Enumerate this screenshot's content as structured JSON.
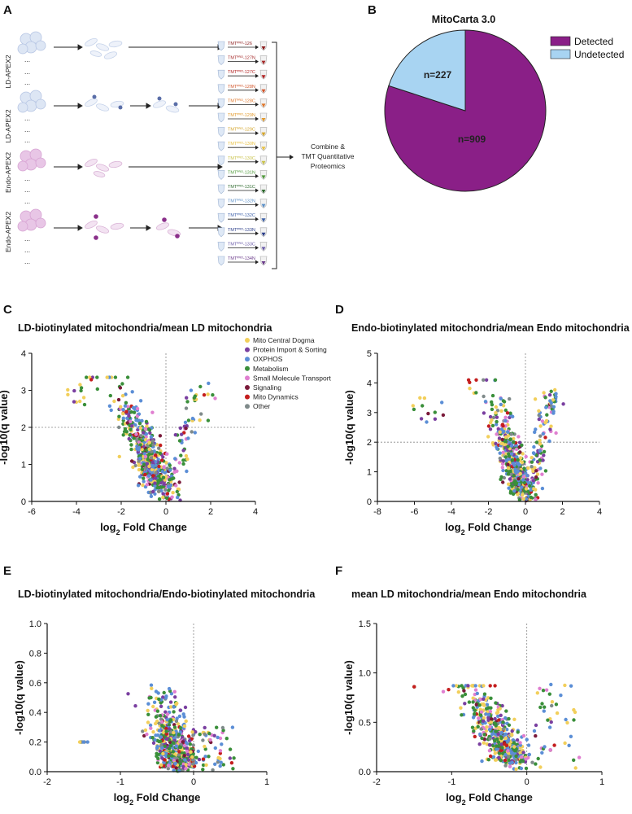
{
  "panels": {
    "a": "A",
    "b": "B",
    "c": "C",
    "d": "D",
    "e": "E",
    "f": "F"
  },
  "schematic": {
    "rows": [
      {
        "label": "LD-APEX2"
      },
      {
        "label": "LD-APEX2"
      },
      {
        "label": "Endo-APEX2"
      },
      {
        "label": "Endo-APEX2"
      }
    ],
    "ellipsis": "...",
    "tmt_labels": [
      {
        "text": "TMTᴾᴿᴼ-126",
        "color": "#8b1a1a"
      },
      {
        "text": "TMTᴾᴿᴼ-127N",
        "color": "#a52a2a"
      },
      {
        "text": "TMTᴾᴿᴼ-127C",
        "color": "#b22222"
      },
      {
        "text": "TMTᴾᴿᴼ-128N",
        "color": "#d2552a"
      },
      {
        "text": "TMTᴾᴿᴼ-128C",
        "color": "#e0762a"
      },
      {
        "text": "TMTᴾᴿᴼ-129N",
        "color": "#e39a2c"
      },
      {
        "text": "TMTᴾᴿᴼ-129C",
        "color": "#d4a52a"
      },
      {
        "text": "TMTᴾᴿᴼ-130N",
        "color": "#e8c040"
      },
      {
        "text": "TMTᴾᴿᴼ-130C",
        "color": "#c9c24a"
      },
      {
        "text": "TMTᴾᴿᴼ-131N",
        "color": "#4f9a3a"
      },
      {
        "text": "TMTᴾᴿᴼ-131C",
        "color": "#2f6b2f"
      },
      {
        "text": "TMTᴾᴿᴼ-132N",
        "color": "#5a8fc8"
      },
      {
        "text": "TMTᴾᴿᴼ-132C",
        "color": "#3a5fa8"
      },
      {
        "text": "TMTᴾᴿᴼ-133N",
        "color": "#2c3f8a"
      },
      {
        "text": "TMTᴾᴿᴼ-133C",
        "color": "#6a5aa8"
      },
      {
        "text": "TMTᴾᴿᴼ-134N",
        "color": "#6a3a8a"
      }
    ],
    "combine_text": [
      "Combine &",
      "TMT Quantitative",
      "Proteomics"
    ]
  },
  "pie": {
    "title": "MitoCarta 3.0",
    "slices": [
      {
        "label": "Detected",
        "value": 909,
        "count_text": "n=909",
        "color": "#8a1f87"
      },
      {
        "label": "Undetected",
        "value": 227,
        "count_text": "n=227",
        "color": "#a8d4f2"
      }
    ]
  },
  "legend": {
    "items": [
      {
        "label": "Mito Central Dogma",
        "color": "#f2cf5b"
      },
      {
        "label": "Protein Import & Sorting",
        "color": "#7a3fa0"
      },
      {
        "label": "OXPHOS",
        "color": "#5b8ed6"
      },
      {
        "label": "Metabolism",
        "color": "#3a8f3a"
      },
      {
        "label": "Small Molecule Transport",
        "color": "#e07fd0"
      },
      {
        "label": "Signaling",
        "color": "#7a1a3a"
      },
      {
        "label": "Mito Dynamics",
        "color": "#c41e1e"
      },
      {
        "label": "Other",
        "color": "#7f8a8a"
      }
    ]
  },
  "chart_data": [
    {
      "id": "C",
      "type": "scatter",
      "title": "LD-biotinylated mitochondria/mean LD mitochondria",
      "xlabel": "log2 Fold Change",
      "xlabel_main": "log",
      "xlabel_sub": "2",
      "xlabel_rest": " Fold Change",
      "ylabel": "-log10(q value)",
      "xlim": [
        -6,
        4
      ],
      "ylim": [
        0,
        4
      ],
      "xticks": [
        "-6",
        "-4",
        "-2",
        "0",
        "2",
        "4"
      ],
      "yticks": [
        "0",
        "1",
        "2",
        "3",
        "4"
      ],
      "threshold_y": 2,
      "threshold_x": 0,
      "shape": "volcano_ld",
      "n_points": 620
    },
    {
      "id": "D",
      "type": "scatter",
      "title": "Endo-biotinylated mitochondria/mean Endo mitochondria",
      "xlabel": "log2 Fold Change",
      "xlabel_main": "log",
      "xlabel_sub": "2",
      "xlabel_rest": " Fold Change",
      "ylabel": "-log10(q value)",
      "xlim": [
        -8,
        4
      ],
      "ylim": [
        0,
        5
      ],
      "xticks": [
        "-8",
        "-6",
        "-4",
        "-2",
        "0",
        "2",
        "4"
      ],
      "yticks": [
        "0",
        "1",
        "2",
        "3",
        "4",
        "5"
      ],
      "threshold_y": 2,
      "threshold_x": 0,
      "shape": "volcano_endo",
      "n_points": 620
    },
    {
      "id": "E",
      "type": "scatter",
      "title": "LD-biotinylated mitochondria/Endo-biotinylated mitochondria",
      "xlabel": "log2 Fold Change",
      "xlabel_main": "log",
      "xlabel_sub": "2",
      "xlabel_rest": " Fold Change",
      "ylabel": "-log10(q value)",
      "xlim": [
        -2,
        1
      ],
      "ylim": [
        0,
        1.0
      ],
      "xticks": [
        "-2",
        "-1",
        "0",
        "1"
      ],
      "yticks": [
        "0.0",
        "0.2",
        "0.4",
        "0.6",
        "0.8",
        "1.0"
      ],
      "threshold_x": 0,
      "shape": "ld_vs_endo",
      "n_points": 620
    },
    {
      "id": "F",
      "type": "scatter",
      "title": "mean LD mitochondria/mean Endo mitochondria",
      "xlabel": "log2 Fold Change",
      "xlabel_main": "log",
      "xlabel_sub": "2",
      "xlabel_rest": " Fold Change",
      "ylabel": "-log10(q value)",
      "xlim": [
        -2,
        1
      ],
      "ylim": [
        0,
        1.5
      ],
      "xticks": [
        "-2",
        "-1",
        "0",
        "1"
      ],
      "yticks": [
        "0.0",
        "0.5",
        "1.0",
        "1.5"
      ],
      "threshold_x": 0,
      "shape": "mean_ld_vs_endo",
      "n_points": 560
    }
  ]
}
